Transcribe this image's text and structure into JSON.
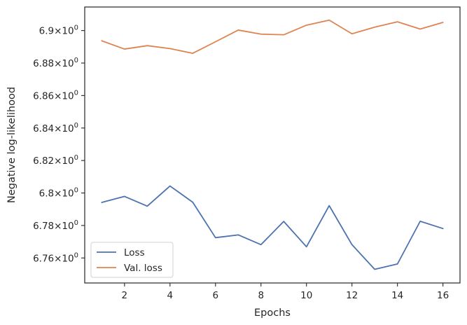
{
  "chart_data": {
    "type": "line",
    "xlabel": "Epochs",
    "ylabel": "Negative log-likelihood",
    "x": [
      1,
      2,
      3,
      4,
      5,
      6,
      7,
      8,
      9,
      10,
      11,
      12,
      13,
      14,
      15,
      16
    ],
    "series": [
      {
        "name": "Loss",
        "color": "#4c72b0",
        "values": [
          6.7942,
          6.7979,
          6.7919,
          6.8043,
          6.7943,
          6.7725,
          6.7742,
          6.7682,
          6.7825,
          6.7669,
          6.7922,
          6.7682,
          6.753,
          6.7563,
          6.7826,
          6.7781
        ]
      },
      {
        "name": "Val. loss",
        "color": "#dd8452",
        "values": [
          6.8937,
          6.8886,
          6.8907,
          6.8889,
          6.886,
          6.8931,
          6.9003,
          6.8978,
          6.8974,
          6.9033,
          6.9064,
          6.898,
          6.9021,
          6.9054,
          6.9009,
          6.905
        ]
      }
    ],
    "xlim": [
      0.25,
      16.75
    ],
    "ylim": [
      6.7446,
      6.9145
    ],
    "xticks": [
      2,
      4,
      6,
      8,
      10,
      12,
      14,
      16
    ],
    "xtick_labels": [
      "2",
      "4",
      "6",
      "8",
      "10",
      "12",
      "14",
      "16"
    ],
    "yticks": [
      6.76,
      6.78,
      6.8,
      6.82,
      6.84,
      6.86,
      6.88,
      6.9
    ],
    "ytick_labels": [
      {
        "mantissa": "6.76",
        "exponent": "0"
      },
      {
        "mantissa": "6.78",
        "exponent": "0"
      },
      {
        "mantissa": "6.8",
        "exponent": "0"
      },
      {
        "mantissa": "6.82",
        "exponent": "0"
      },
      {
        "mantissa": "6.84",
        "exponent": "0"
      },
      {
        "mantissa": "6.86",
        "exponent": "0"
      },
      {
        "mantissa": "6.88",
        "exponent": "0"
      },
      {
        "mantissa": "6.9",
        "exponent": "0"
      }
    ],
    "yscale": "log",
    "grid": false,
    "legend_position": "lower-left"
  }
}
